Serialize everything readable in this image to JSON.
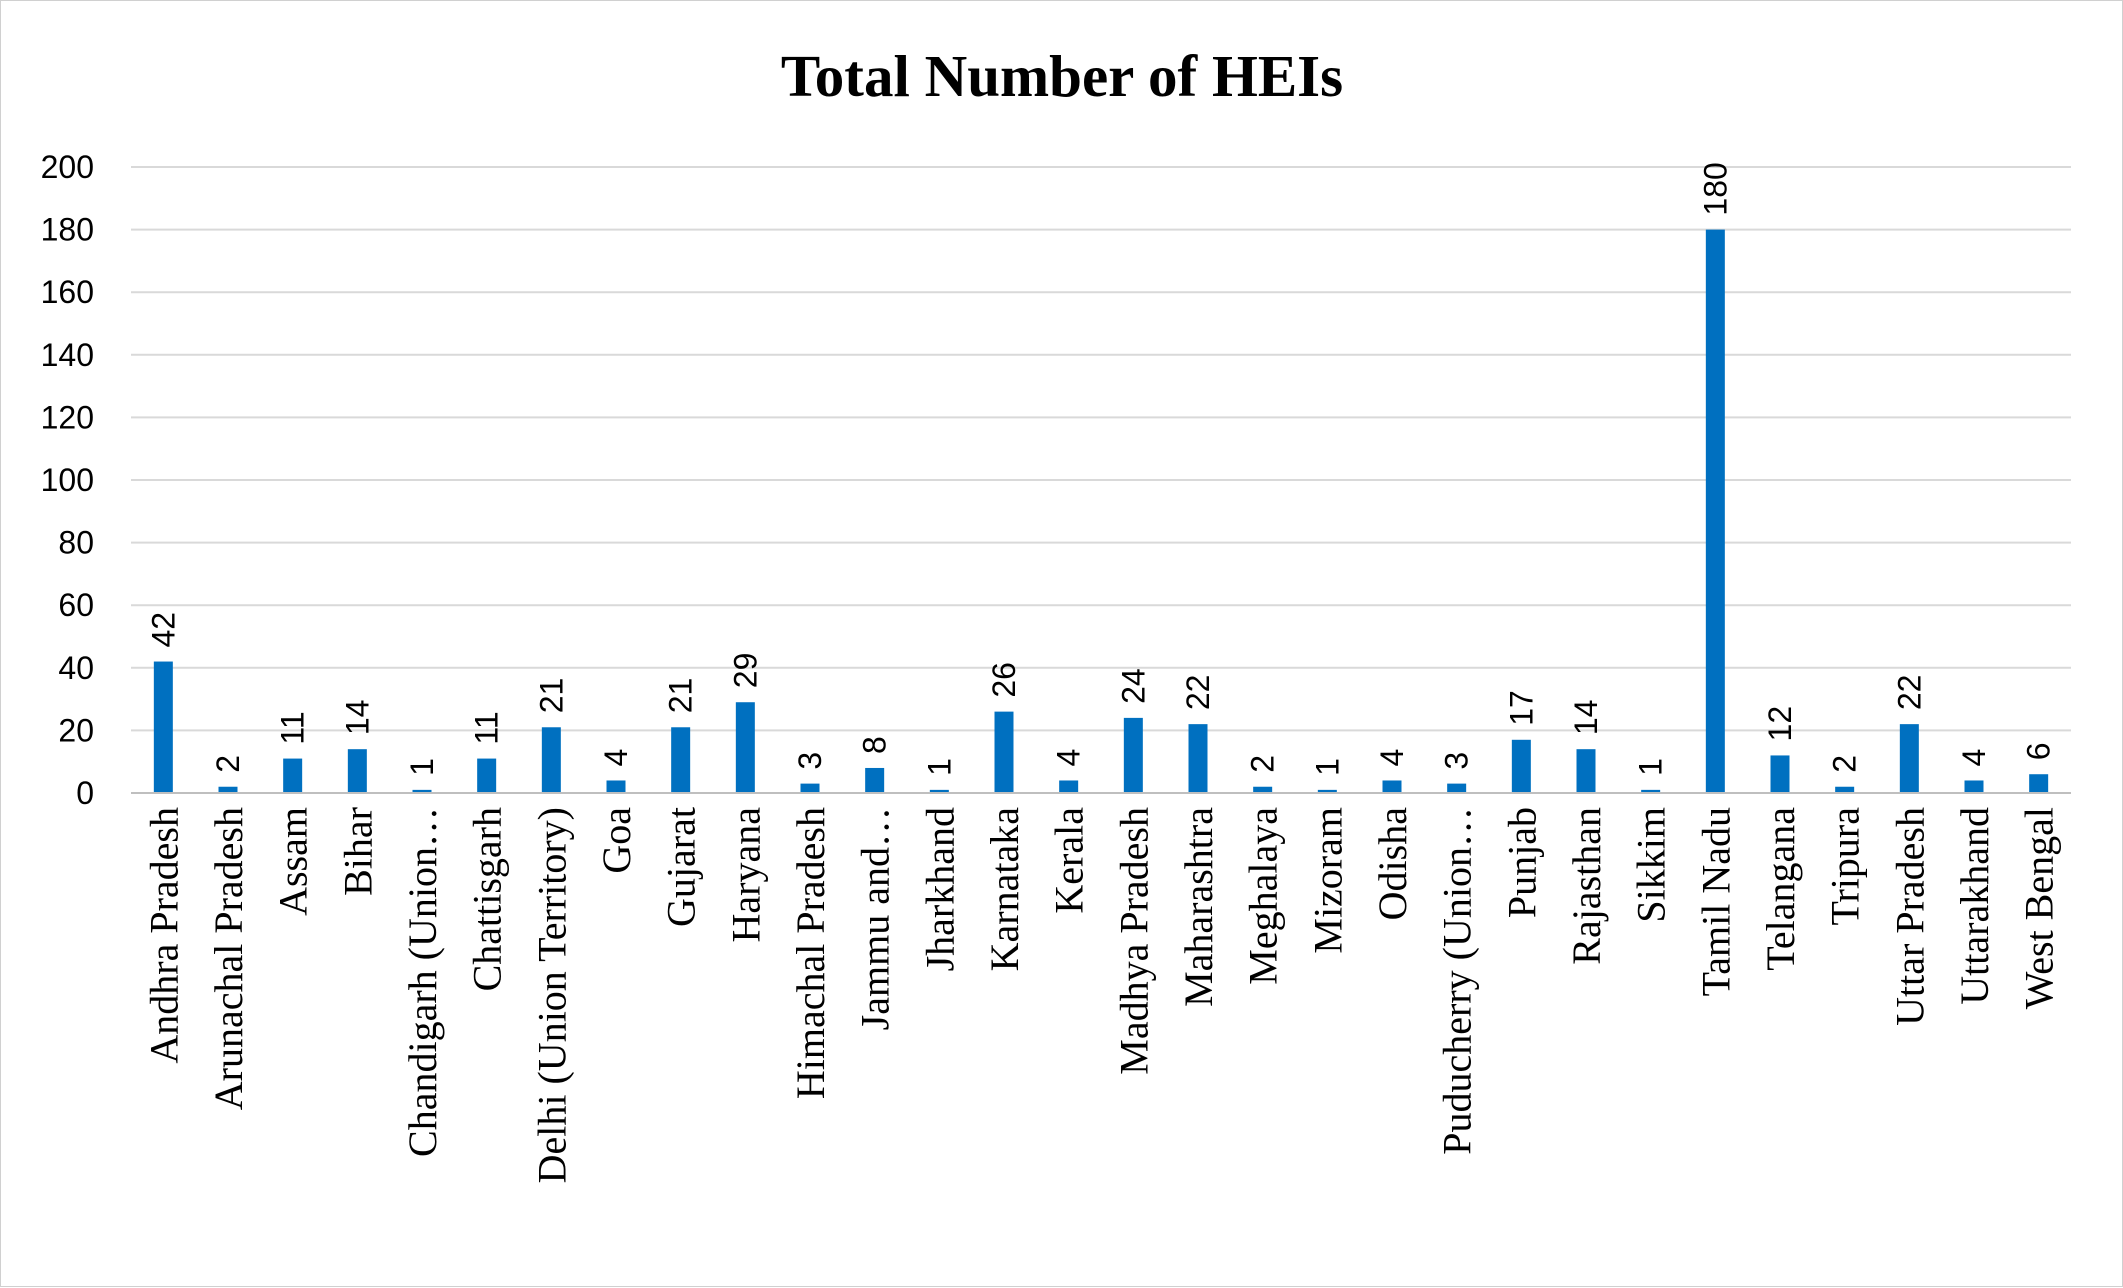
{
  "chart_data": {
    "type": "bar",
    "title": "Total Number of HEIs",
    "xlabel": "",
    "ylabel": "",
    "ylim": [
      0,
      200
    ],
    "yticks": [
      0,
      20,
      40,
      60,
      80,
      100,
      120,
      140,
      160,
      180,
      200
    ],
    "grid": true,
    "legend": "none",
    "bar_color": "#0070c0",
    "categories": [
      "Andhra Pradesh",
      "Arunachal Pradesh",
      "Assam",
      "Bihar",
      "Chandigarh (Union…",
      "Chattisgarh",
      "Delhi (Union Territory)",
      "Goa",
      "Gujarat",
      "Haryana",
      "Himachal Pradesh",
      "Jammu and…",
      "Jharkhand",
      "Karnataka",
      "Kerala",
      "Madhya Pradesh",
      "Maharashtra",
      "Meghalaya",
      "Mizoram",
      "Odisha",
      "Puducherry (Union…",
      "Punjab",
      "Rajasthan",
      "Sikkim",
      "Tamil Nadu",
      "Telangana",
      "Tripura",
      "Uttar Pradesh",
      "Uttarakhand",
      "West Bengal"
    ],
    "values": [
      42,
      2,
      11,
      14,
      1,
      11,
      21,
      4,
      21,
      29,
      3,
      8,
      1,
      26,
      4,
      24,
      22,
      2,
      1,
      4,
      3,
      17,
      14,
      1,
      180,
      12,
      2,
      22,
      4,
      6
    ]
  }
}
